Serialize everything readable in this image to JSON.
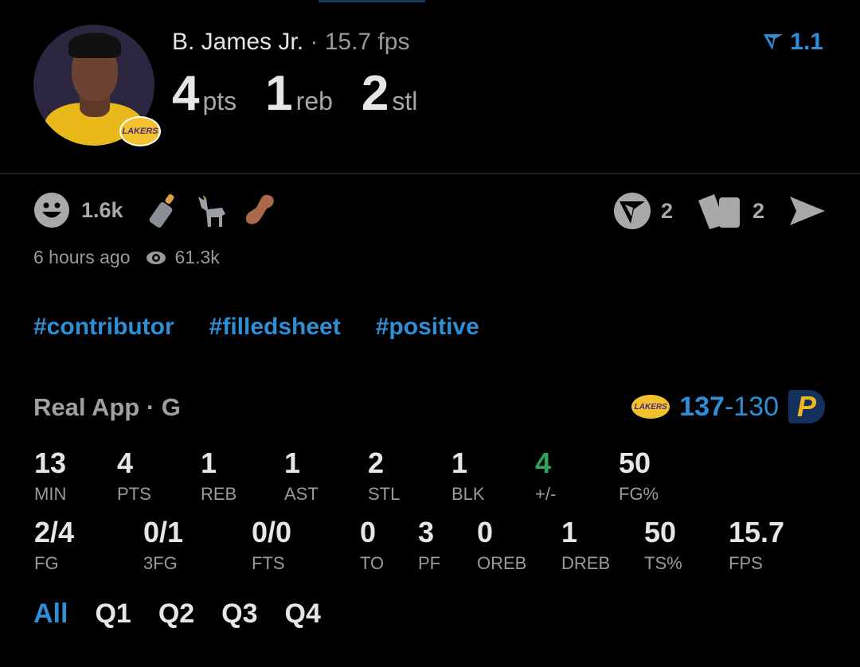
{
  "header": {
    "player_name": "B. James Jr.",
    "fps_label": "· 15.7 fps",
    "big_stats": [
      {
        "value": "4",
        "unit": "pts"
      },
      {
        "value": "1",
        "unit": "reb"
      },
      {
        "value": "2",
        "unit": "stl"
      }
    ],
    "rating": "1.1",
    "team_badge": "LAKERS"
  },
  "reactions": {
    "smile_count": "1.6k",
    "emojis": [
      "baby-bottle",
      "goat",
      "peanut"
    ],
    "comment_count": "2",
    "card_count": "2"
  },
  "meta": {
    "time_ago": "6 hours ago",
    "views": "61.3k"
  },
  "tags": [
    "#contributor",
    "#filledsheet",
    "#positive"
  ],
  "game": {
    "title": "Real App · G",
    "home_logo": "LAKERS",
    "score_home": "137",
    "score_sep": "-",
    "score_away": "130",
    "away_logo": "P"
  },
  "stats_row1": [
    {
      "value": "13",
      "label": "MIN"
    },
    {
      "value": "4",
      "label": "PTS"
    },
    {
      "value": "1",
      "label": "REB"
    },
    {
      "value": "1",
      "label": "AST"
    },
    {
      "value": "2",
      "label": "STL"
    },
    {
      "value": "1",
      "label": "BLK"
    },
    {
      "value": "4",
      "label": "+/-"
    },
    {
      "value": "50",
      "label": "FG%"
    }
  ],
  "stats_row2": [
    {
      "value": "2/4",
      "label": "FG"
    },
    {
      "value": "0/1",
      "label": "3FG"
    },
    {
      "value": "0/0",
      "label": "FTS"
    },
    {
      "value": "0",
      "label": "TO"
    },
    {
      "value": "3",
      "label": "PF"
    },
    {
      "value": "0",
      "label": "OREB"
    },
    {
      "value": "1",
      "label": "DREB"
    },
    {
      "value": "50",
      "label": "TS%"
    },
    {
      "value": "15.7",
      "label": "FPS"
    }
  ],
  "quarters": [
    "All",
    "Q1",
    "Q2",
    "Q3",
    "Q4"
  ],
  "colors": {
    "accent": "#2e8fd6",
    "positive": "#2fa35a",
    "muted": "#9a9a9a",
    "background": "#000000"
  }
}
